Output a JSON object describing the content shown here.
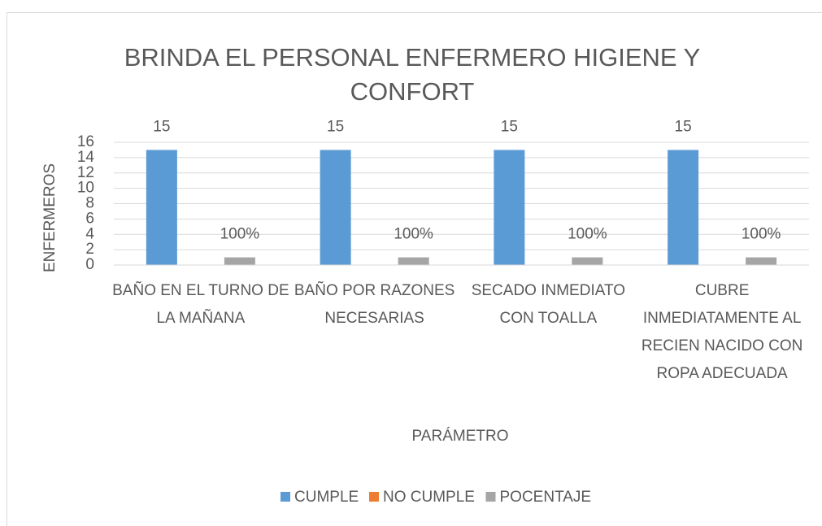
{
  "chart_data": {
    "type": "bar",
    "title": "BRINDA EL PERSONAL ENFERMERO HIGIENE Y CONFORT",
    "x_label": "PARÁMETRO",
    "y_label": "ENFERMEROS",
    "categories": [
      "BAÑO EN EL TURNO DE LA MAÑANA",
      "BAÑO POR RAZONES NECESARIAS",
      "SECADO INMEDIATO CON TOALLA",
      "CUBRE INMEDIATAMENTE AL RECIEN NACIDO CON ROPA ADECUADA"
    ],
    "series": [
      {
        "name": "CUMPLE",
        "color": "#5b9bd5",
        "values": [
          15,
          15,
          15,
          15
        ]
      },
      {
        "name": "NO CUMPLE",
        "color": "#ed7d31",
        "values": [
          0,
          0,
          0,
          0
        ]
      },
      {
        "name": "POCENTAJE",
        "color": "#a5a5a5",
        "values": [
          1,
          1,
          1,
          1
        ],
        "value_labels": [
          "100%",
          "100%",
          "100%",
          "100%"
        ]
      }
    ],
    "ylim": [
      0,
      16
    ],
    "yticks": [
      0,
      2,
      4,
      6,
      8,
      10,
      12,
      14,
      16
    ],
    "grid": true,
    "legend": "bottom"
  }
}
